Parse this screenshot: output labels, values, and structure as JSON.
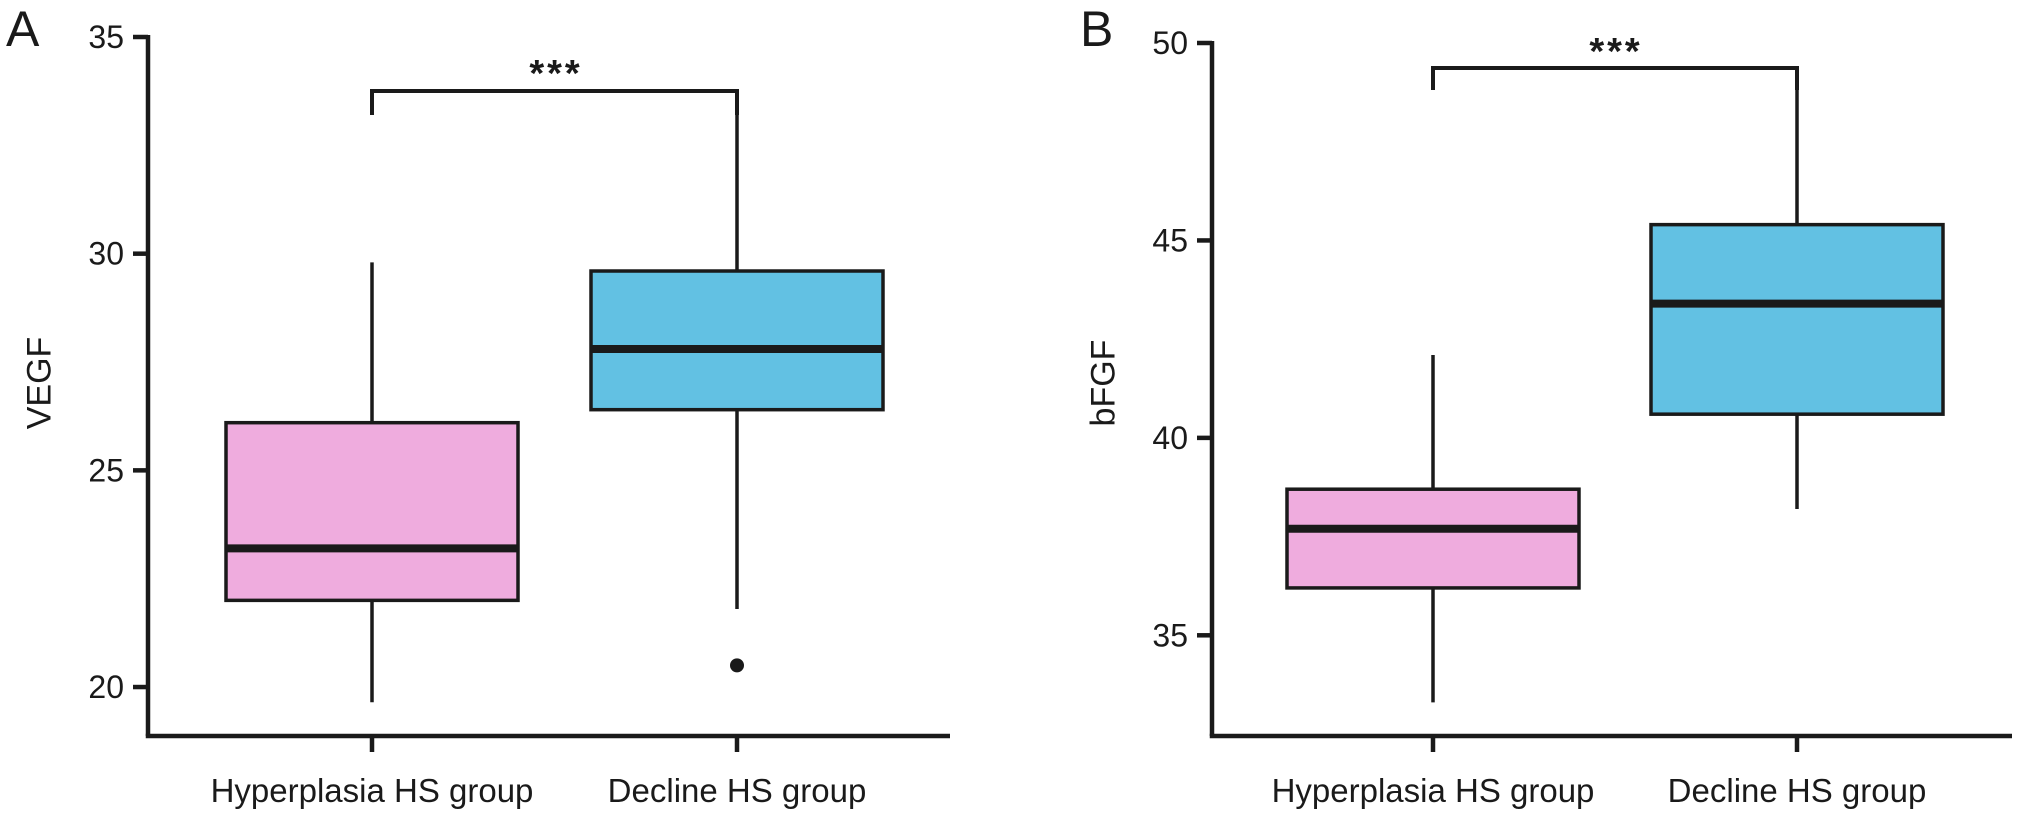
{
  "figure": {
    "background": "#ffffff",
    "stroke_color": "#1a1a1a",
    "groups_fill": {
      "hyperplasia": "#EFACDE",
      "decline": "#62C1E3"
    }
  },
  "chart_data": [
    {
      "type": "box",
      "panel_label": "A",
      "ylabel": "VEGF",
      "xlabel": "",
      "categories": [
        "Hyperplasia HS group",
        "Decline HS group"
      ],
      "yticks": [
        20,
        25,
        30,
        35
      ],
      "ylim": [
        18.87,
        35
      ],
      "grid": false,
      "legend": false,
      "significance": {
        "label": "***",
        "between": [
          "Hyperplasia HS group",
          "Decline HS group"
        ]
      },
      "boxes": [
        {
          "category": "Hyperplasia HS group",
          "fill": "#EFACDE",
          "whisker_low": 19.65,
          "q1": 22.0,
          "median": 23.2,
          "q3": 26.1,
          "whisker_high": 29.8,
          "outliers": []
        },
        {
          "category": "Decline HS group",
          "fill": "#62C1E3",
          "whisker_low": 21.8,
          "q1": 26.4,
          "median": 27.8,
          "q3": 29.6,
          "whisker_high": 33.2,
          "outliers": [
            20.5
          ]
        }
      ]
    },
    {
      "type": "box",
      "panel_label": "B",
      "ylabel": "bFGF",
      "xlabel": "",
      "categories": [
        "Hyperplasia HS group",
        "Decline HS group"
      ],
      "yticks": [
        35,
        40,
        45,
        50
      ],
      "ylim": [
        32.45,
        50
      ],
      "grid": false,
      "legend": false,
      "significance": {
        "label": "***",
        "between": [
          "Hyperplasia HS group",
          "Decline HS group"
        ]
      },
      "boxes": [
        {
          "category": "Hyperplasia HS group",
          "fill": "#EFACDE",
          "whisker_low": 33.3,
          "q1": 36.2,
          "median": 37.7,
          "q3": 38.7,
          "whisker_high": 42.1,
          "outliers": []
        },
        {
          "category": "Decline HS group",
          "fill": "#62C1E3",
          "whisker_low": 38.2,
          "q1": 40.6,
          "median": 43.4,
          "q3": 45.4,
          "whisker_high": 48.9,
          "outliers": []
        }
      ]
    }
  ]
}
